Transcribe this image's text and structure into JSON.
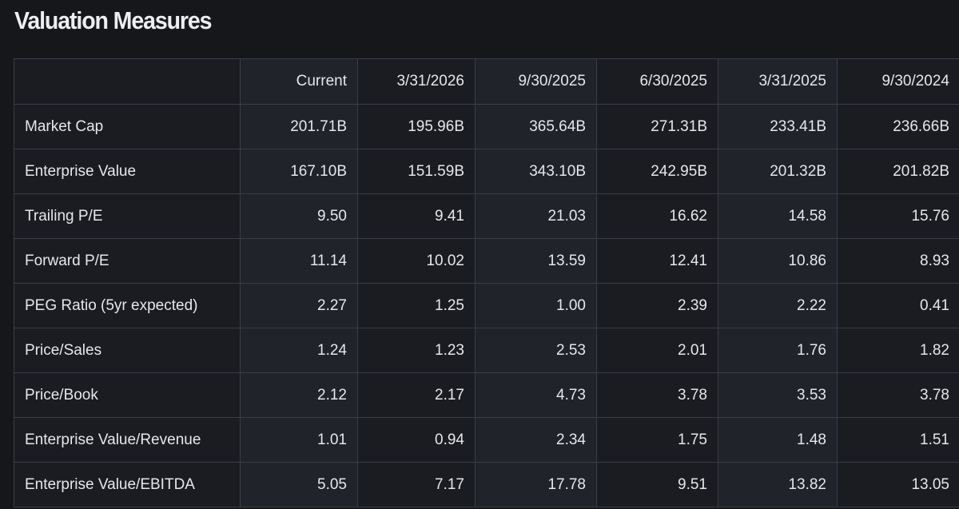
{
  "header": {
    "title": "Valuation Measures"
  },
  "table": {
    "columns": [
      "Current",
      "3/31/2026",
      "9/30/2025",
      "6/30/2025",
      "3/31/2025",
      "9/30/2024"
    ],
    "rows": [
      {
        "label": "Market Cap",
        "values": [
          "201.71B",
          "195.96B",
          "365.64B",
          "271.31B",
          "233.41B",
          "236.66B"
        ]
      },
      {
        "label": "Enterprise Value",
        "values": [
          "167.10B",
          "151.59B",
          "343.10B",
          "242.95B",
          "201.32B",
          "201.82B"
        ]
      },
      {
        "label": "Trailing P/E",
        "values": [
          "9.50",
          "9.41",
          "21.03",
          "16.62",
          "14.58",
          "15.76"
        ]
      },
      {
        "label": "Forward P/E",
        "values": [
          "11.14",
          "10.02",
          "13.59",
          "12.41",
          "10.86",
          "8.93"
        ]
      },
      {
        "label": "PEG Ratio (5yr expected)",
        "values": [
          "2.27",
          "1.25",
          "1.00",
          "2.39",
          "2.22",
          "0.41"
        ]
      },
      {
        "label": "Price/Sales",
        "values": [
          "1.24",
          "1.23",
          "2.53",
          "2.01",
          "1.76",
          "1.82"
        ]
      },
      {
        "label": "Price/Book",
        "values": [
          "2.12",
          "2.17",
          "4.73",
          "3.78",
          "3.53",
          "3.78"
        ]
      },
      {
        "label": "Enterprise Value/Revenue",
        "values": [
          "1.01",
          "0.94",
          "2.34",
          "1.75",
          "1.48",
          "1.51"
        ]
      },
      {
        "label": "Enterprise Value/EBITDA",
        "values": [
          "5.05",
          "7.17",
          "17.78",
          "9.51",
          "13.82",
          "13.05"
        ]
      }
    ]
  }
}
